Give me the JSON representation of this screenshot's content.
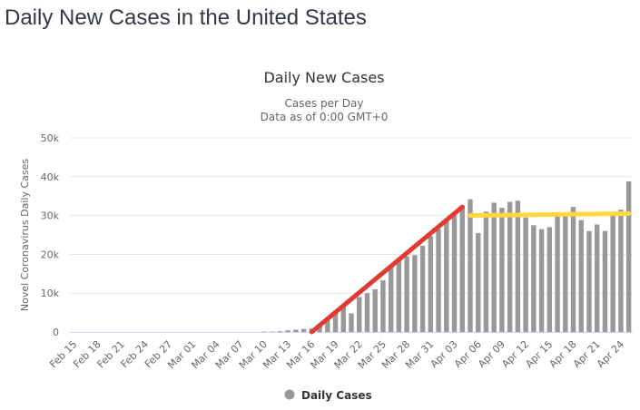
{
  "page": {
    "title": "Daily New Cases in the United States"
  },
  "chart_data": {
    "type": "bar",
    "title": "Daily New Cases",
    "subtitle": [
      "Cases per Day",
      "Data as of 0:00 GMT+0"
    ],
    "xlabel": "",
    "ylabel": "Novel Coronavirus Daily Cases",
    "ylim": [
      0,
      50000
    ],
    "yticks": [
      0,
      10000,
      20000,
      30000,
      40000,
      50000
    ],
    "ytick_labels": [
      "0",
      "10k",
      "20k",
      "30k",
      "40k",
      "50k"
    ],
    "grid": true,
    "legend": {
      "position": "bottom-center",
      "entries": [
        "Daily Cases"
      ]
    },
    "xtick_labels": [
      "Feb 15",
      "Feb 18",
      "Feb 21",
      "Feb 24",
      "Feb 27",
      "Mar 01",
      "Mar 04",
      "Mar 07",
      "Mar 10",
      "Mar 13",
      "Mar 16",
      "Mar 19",
      "Mar 22",
      "Mar 25",
      "Mar 28",
      "Mar 31",
      "Apr 03",
      "Apr 06",
      "Apr 09",
      "Apr 12",
      "Apr 15",
      "Apr 18",
      "Apr 21",
      "Apr 24"
    ],
    "categories": [
      "Feb 15",
      "Feb 16",
      "Feb 17",
      "Feb 18",
      "Feb 19",
      "Feb 20",
      "Feb 21",
      "Feb 22",
      "Feb 23",
      "Feb 24",
      "Feb 25",
      "Feb 26",
      "Feb 27",
      "Feb 28",
      "Feb 29",
      "Mar 01",
      "Mar 02",
      "Mar 03",
      "Mar 04",
      "Mar 05",
      "Mar 06",
      "Mar 07",
      "Mar 08",
      "Mar 09",
      "Mar 10",
      "Mar 11",
      "Mar 12",
      "Mar 13",
      "Mar 14",
      "Mar 15",
      "Mar 16",
      "Mar 17",
      "Mar 18",
      "Mar 19",
      "Mar 20",
      "Mar 21",
      "Mar 22",
      "Mar 23",
      "Mar 24",
      "Mar 25",
      "Mar 26",
      "Mar 27",
      "Mar 28",
      "Mar 29",
      "Mar 30",
      "Mar 31",
      "Apr 01",
      "Apr 02",
      "Apr 03",
      "Apr 04",
      "Apr 05",
      "Apr 06",
      "Apr 07",
      "Apr 08",
      "Apr 09",
      "Apr 10",
      "Apr 11",
      "Apr 12",
      "Apr 13",
      "Apr 14",
      "Apr 15",
      "Apr 16",
      "Apr 17",
      "Apr 18",
      "Apr 19",
      "Apr 20",
      "Apr 21",
      "Apr 22",
      "Apr 23",
      "Apr 24",
      "Apr 25"
    ],
    "series": [
      {
        "name": "Daily Cases",
        "color": "#999999",
        "values": [
          0,
          0,
          0,
          0,
          0,
          0,
          0,
          0,
          0,
          0,
          0,
          0,
          0,
          0,
          0,
          0,
          0,
          0,
          0,
          0,
          0,
          0,
          0,
          0,
          100,
          100,
          200,
          400,
          600,
          800,
          900,
          1800,
          3000,
          5500,
          6600,
          4800,
          9000,
          10000,
          11000,
          13300,
          17200,
          18500,
          19500,
          19800,
          22200,
          24700,
          26500,
          29000,
          30100,
          32600,
          34200,
          25500,
          31000,
          33300,
          32000,
          33500,
          33800,
          29500,
          27500,
          26500,
          27000,
          30000,
          30000,
          32200,
          28800,
          26000,
          27700,
          26000,
          30300,
          31500,
          38800
        ]
      }
    ],
    "annotations": [
      {
        "name": "growth-trend-line",
        "color": "#e03a33",
        "from": {
          "x": "Mar 16",
          "y": 0
        },
        "to": {
          "x": "Apr 04",
          "y": 32200
        }
      },
      {
        "name": "plateau-trend-line",
        "color": "#ffd740",
        "from": {
          "x": "Apr 05",
          "y": 30000
        },
        "to": {
          "x": "Apr 25",
          "y": 30500
        }
      }
    ]
  }
}
